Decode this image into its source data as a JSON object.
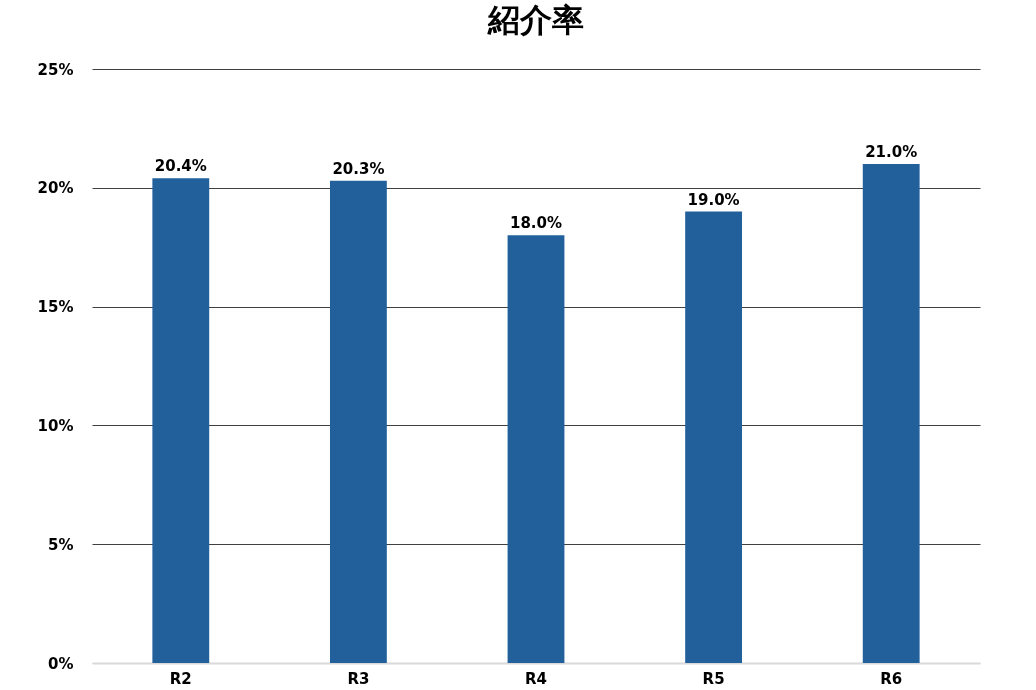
{
  "chart_data": {
    "type": "bar",
    "title": "紹介率",
    "categories": [
      "R2",
      "R3",
      "R4",
      "R5",
      "R6"
    ],
    "values": [
      20.4,
      20.3,
      18.0,
      19.0,
      21.0
    ],
    "value_labels": [
      "20.4%",
      "20.3%",
      "18.0%",
      "19.0%",
      "21.0%"
    ],
    "color": "#21609b",
    "ylim": [
      0,
      25
    ],
    "yticks": [
      {
        "value": 0,
        "label": "0%"
      },
      {
        "value": 5,
        "label": "5%"
      },
      {
        "value": 10,
        "label": "10%"
      },
      {
        "value": 15,
        "label": "15%"
      },
      {
        "value": 20,
        "label": "20%"
      },
      {
        "value": 25,
        "label": "25%"
      }
    ],
    "grid": "y"
  }
}
